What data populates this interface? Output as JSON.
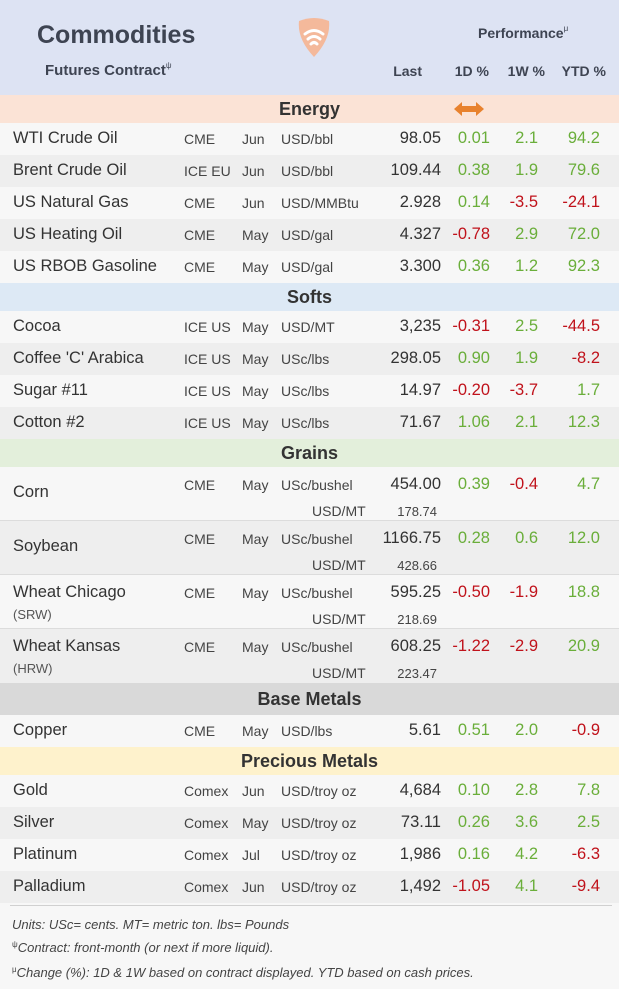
{
  "header": {
    "title": "Commodities",
    "subtitle": "Futures Contract",
    "subtitle_mark": "ψ",
    "performance": "Performance",
    "performance_mark": "μ",
    "col_last": "Last",
    "col_1d": "1D %",
    "col_1w": "1W %",
    "col_ytd": "YTD %"
  },
  "colors": {
    "positive": "#6aae3a",
    "negative": "#c0121b",
    "energy_bg": "#fbe3d6",
    "softs_bg": "#dde9f5",
    "grains_bg": "#e3efdb",
    "base_bg": "#d9d9d9",
    "precious_bg": "#fef2cc",
    "arrow": "#e8822e"
  },
  "icons": {
    "logo": "wifi-shield-logo",
    "indicator": "left-right-arrow-icon"
  },
  "sections": {
    "energy": {
      "label": "Energy",
      "rows": [
        {
          "name": "WTI Crude Oil",
          "exch": "CME",
          "month": "Jun",
          "unit": "USD/bbl",
          "last": "98.05",
          "d1": "0.01",
          "w1": "2.1",
          "ytd": "94.2"
        },
        {
          "name": "Brent Crude Oil",
          "exch": "ICE EU",
          "month": "Jun",
          "unit": "USD/bbl",
          "last": "109.44",
          "d1": "0.38",
          "w1": "1.9",
          "ytd": "79.6"
        },
        {
          "name": "US Natural Gas",
          "exch": "CME",
          "month": "Jun",
          "unit": "USD/MMBtu",
          "last": "2.928",
          "d1": "0.14",
          "w1": "-3.5",
          "ytd": "-24.1"
        },
        {
          "name": "US Heating Oil",
          "exch": "CME",
          "month": "May",
          "unit": "USD/gal",
          "last": "4.327",
          "d1": "-0.78",
          "w1": "2.9",
          "ytd": "72.0"
        },
        {
          "name": "US RBOB Gasoline",
          "exch": "CME",
          "month": "May",
          "unit": "USD/gal",
          "last": "3.300",
          "d1": "0.36",
          "w1": "1.2",
          "ytd": "92.3"
        }
      ]
    },
    "softs": {
      "label": "Softs",
      "rows": [
        {
          "name": "Cocoa",
          "exch": "ICE US",
          "month": "May",
          "unit": "USD/MT",
          "last": "3,235",
          "d1": "-0.31",
          "w1": "2.5",
          "ytd": "-44.5"
        },
        {
          "name": "Coffee 'C' Arabica",
          "exch": "ICE US",
          "month": "May",
          "unit": "USc/lbs",
          "last": "298.05",
          "d1": "0.90",
          "w1": "1.9",
          "ytd": "-8.2"
        },
        {
          "name": "Sugar #11",
          "exch": "ICE US",
          "month": "May",
          "unit": "USc/lbs",
          "last": "14.97",
          "d1": "-0.20",
          "w1": "-3.7",
          "ytd": "1.7"
        },
        {
          "name": "Cotton #2",
          "exch": "ICE US",
          "month": "May",
          "unit": "USc/lbs",
          "last": "71.67",
          "d1": "1.06",
          "w1": "2.1",
          "ytd": "12.3"
        }
      ]
    },
    "grains": {
      "label": "Grains",
      "rows": [
        {
          "name": "Corn",
          "sub": "",
          "exch": "CME",
          "month": "May",
          "unit": "USc/bushel",
          "last": "454.00",
          "d1": "0.39",
          "w1": "-0.4",
          "ytd": "4.7",
          "mt_unit": "USD/MT",
          "mt_val": "178.74"
        },
        {
          "name": "Soybean",
          "sub": "",
          "exch": "CME",
          "month": "May",
          "unit": "USc/bushel",
          "last": "1166.75",
          "d1": "0.28",
          "w1": "0.6",
          "ytd": "12.0",
          "mt_unit": "USD/MT",
          "mt_val": "428.66"
        },
        {
          "name": "Wheat Chicago",
          "sub": "(SRW)",
          "exch": "CME",
          "month": "May",
          "unit": "USc/bushel",
          "last": "595.25",
          "d1": "-0.50",
          "w1": "-1.9",
          "ytd": "18.8",
          "mt_unit": "USD/MT",
          "mt_val": "218.69"
        },
        {
          "name": "Wheat Kansas",
          "sub": "(HRW)",
          "exch": "CME",
          "month": "May",
          "unit": "USc/bushel",
          "last": "608.25",
          "d1": "-1.22",
          "w1": "-2.9",
          "ytd": "20.9",
          "mt_unit": "USD/MT",
          "mt_val": "223.47"
        }
      ]
    },
    "base": {
      "label": "Base Metals",
      "rows": [
        {
          "name": "Copper",
          "exch": "CME",
          "month": "May",
          "unit": "USD/lbs",
          "last": "5.61",
          "d1": "0.51",
          "w1": "2.0",
          "ytd": "-0.9"
        }
      ]
    },
    "precious": {
      "label": "Precious Metals",
      "rows": [
        {
          "name": "Gold",
          "exch": "Comex",
          "month": "Jun",
          "unit": "USD/troy oz",
          "last": "4,684",
          "d1": "0.10",
          "w1": "2.8",
          "ytd": "7.8"
        },
        {
          "name": "Silver",
          "exch": "Comex",
          "month": "May",
          "unit": "USD/troy oz",
          "last": "73.11",
          "d1": "0.26",
          "w1": "3.6",
          "ytd": "2.5"
        },
        {
          "name": "Platinum",
          "exch": "Comex",
          "month": "Jul",
          "unit": "USD/troy oz",
          "last": "1,986",
          "d1": "0.16",
          "w1": "4.2",
          "ytd": "-6.3"
        },
        {
          "name": "Palladium",
          "exch": "Comex",
          "month": "Jun",
          "unit": "USD/troy oz",
          "last": "1,492",
          "d1": "-1.05",
          "w1": "4.1",
          "ytd": "-9.4"
        }
      ]
    }
  },
  "footer": {
    "units": "Units: USc= cents.  MT= metric ton.  lbs= Pounds",
    "contract_mark": "ψ",
    "contract": "Contract: front-month (or next if more liquid).",
    "change_mark": "μ",
    "change": "Change (%): 1D & 1W based on contract displayed. YTD based on cash prices."
  }
}
